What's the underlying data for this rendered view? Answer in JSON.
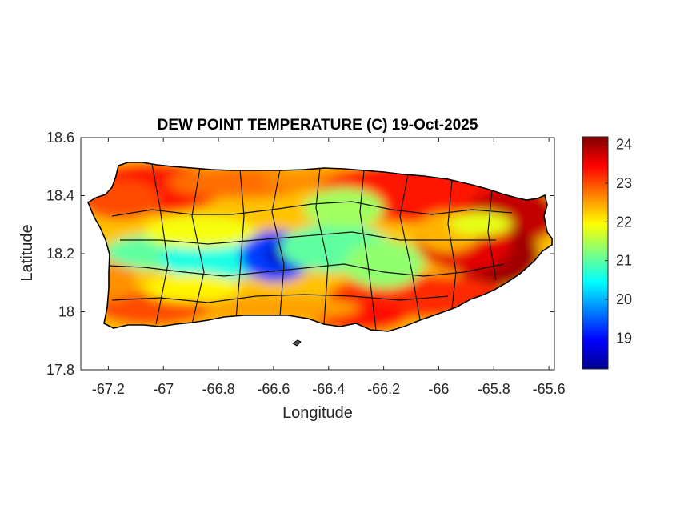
{
  "chart_data": {
    "type": "heatmap",
    "title": "DEW POINT TEMPERATURE (C) 19-Oct-2025",
    "xlabel": "Longitude",
    "ylabel": "Latitude",
    "xlim": [
      -67.3,
      -65.58
    ],
    "ylim": [
      17.8,
      18.6
    ],
    "xticks": [
      -67.2,
      -67,
      -66.8,
      -66.6,
      -66.4,
      -66.2,
      -66,
      -65.8,
      -65.6
    ],
    "xtick_labels": [
      "-67.2",
      "-67",
      "-66.8",
      "-66.6",
      "-66.4",
      "-66.2",
      "-66",
      "-65.8",
      "-65.6"
    ],
    "yticks": [
      17.8,
      18,
      18.2,
      18.4,
      18.6
    ],
    "ytick_labels": [
      "17.8",
      "18",
      "18.2",
      "18.4",
      "18.6"
    ],
    "colorbar": {
      "colormap": "jet",
      "min": 18.2,
      "max": 24.2,
      "ticks": [
        19,
        20,
        21,
        22,
        23,
        24
      ],
      "tick_labels": [
        "19",
        "20",
        "21",
        "22",
        "23",
        "24"
      ]
    },
    "grid": false,
    "notes_visible": "Puerto Rico dew point field with municipality boundaries"
  }
}
